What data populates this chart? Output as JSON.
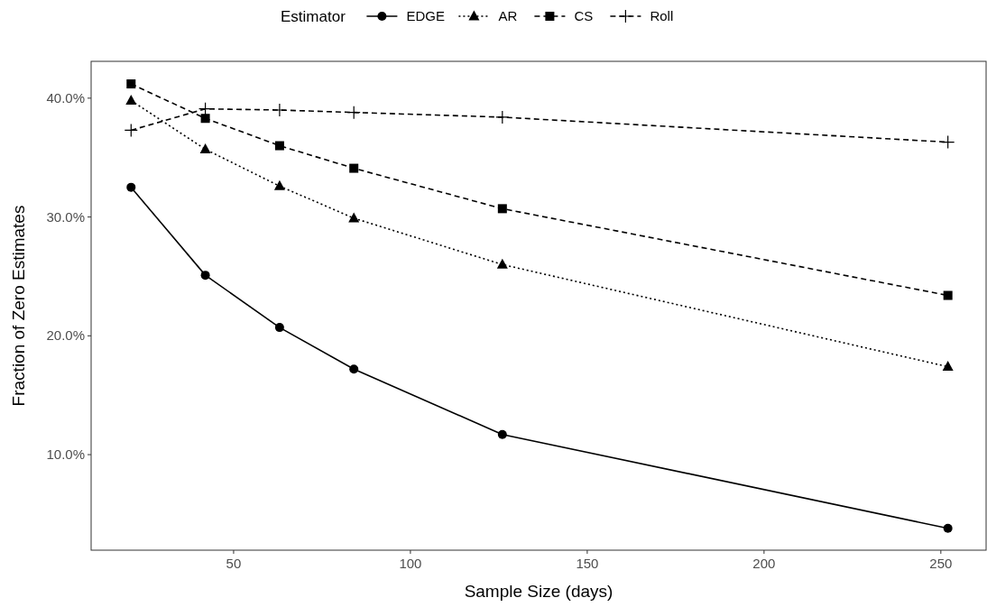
{
  "chart_data": {
    "type": "line",
    "xlabel": "Sample Size (days)",
    "ylabel": "Fraction of Zero Estimates",
    "legend_title": "Estimator",
    "legend": "top",
    "grid": false,
    "x": [
      21,
      42,
      63,
      84,
      126,
      252
    ],
    "xlim": [
      9.7,
      262.8
    ],
    "xticks": [
      50,
      100,
      150,
      200,
      250
    ],
    "ylim": [
      1.96,
      43.1
    ],
    "yticks": [
      {
        "value": 10,
        "label": "10.0%"
      },
      {
        "value": 20,
        "label": "20.0%"
      },
      {
        "value": 30,
        "label": "30.0%"
      },
      {
        "value": 40,
        "label": "40.0%"
      }
    ],
    "series": [
      {
        "name": "EDGE",
        "color": "#000000",
        "marker": "circle",
        "line_style": "solid",
        "values": [
          32.5,
          25.1,
          20.7,
          17.2,
          11.7,
          3.8
        ]
      },
      {
        "name": "AR",
        "color": "#000000",
        "marker": "triangle",
        "line_style": "dotted",
        "values": [
          39.8,
          35.7,
          32.6,
          29.9,
          26.0,
          17.4
        ]
      },
      {
        "name": "CS",
        "color": "#000000",
        "marker": "square",
        "line_style": "dashed",
        "values": [
          41.2,
          38.3,
          36.0,
          34.1,
          30.7,
          23.4
        ]
      },
      {
        "name": "Roll",
        "color": "#000000",
        "marker": "cross",
        "line_style": "dashed",
        "values": [
          37.3,
          39.1,
          39.0,
          38.8,
          38.4,
          36.3
        ]
      }
    ]
  }
}
